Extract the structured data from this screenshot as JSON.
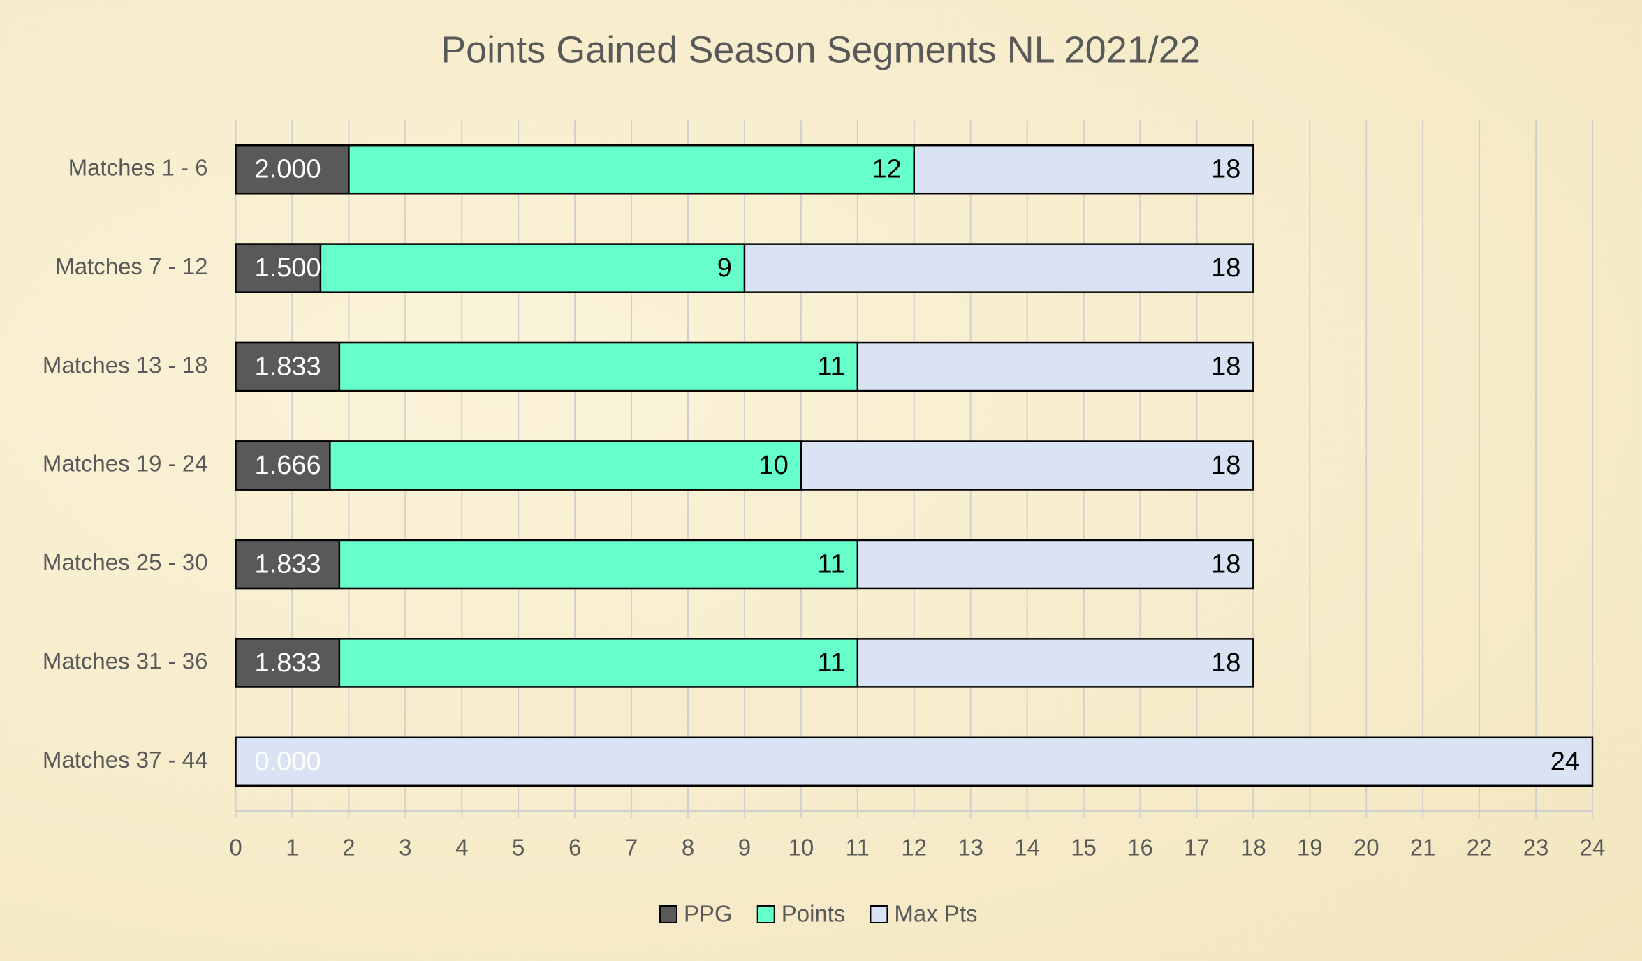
{
  "chart_data": {
    "type": "bar",
    "orientation": "horizontal",
    "bar_mode": "overlap",
    "title": "Points Gained Season Segments NL 2021/22",
    "categories": [
      "Matches 1 - 6",
      "Matches 7 - 12",
      "Matches 13 - 18",
      "Matches 19 - 24",
      "Matches 25 - 30",
      "Matches 31 - 36",
      "Matches 37 - 44"
    ],
    "series": [
      {
        "name": "Max Pts",
        "color": "#dae3f3",
        "values": [
          18,
          18,
          18,
          18,
          18,
          18,
          24
        ]
      },
      {
        "name": "Points",
        "color": "#66ffcc",
        "values": [
          12,
          9,
          11,
          10,
          11,
          11,
          0
        ],
        "value_labels": [
          "12",
          "9",
          "11",
          "10",
          "11",
          "11",
          null
        ]
      },
      {
        "name": "PPG",
        "color": "#595959",
        "values": [
          2,
          1.5,
          1.833,
          1.666,
          1.833,
          1.833,
          0
        ],
        "value_labels": [
          "2.000",
          "1.500",
          "1.833",
          "1.666",
          "1.833",
          "1.833",
          "0.000"
        ]
      }
    ],
    "legend_order": [
      "PPG",
      "Points",
      "Max Pts"
    ],
    "xlim": [
      0,
      24
    ],
    "xticks": [
      0,
      1,
      2,
      3,
      4,
      5,
      6,
      7,
      8,
      9,
      10,
      11,
      12,
      13,
      14,
      15,
      16,
      17,
      18,
      19,
      20,
      21,
      22,
      23,
      24
    ],
    "grid": true
  }
}
